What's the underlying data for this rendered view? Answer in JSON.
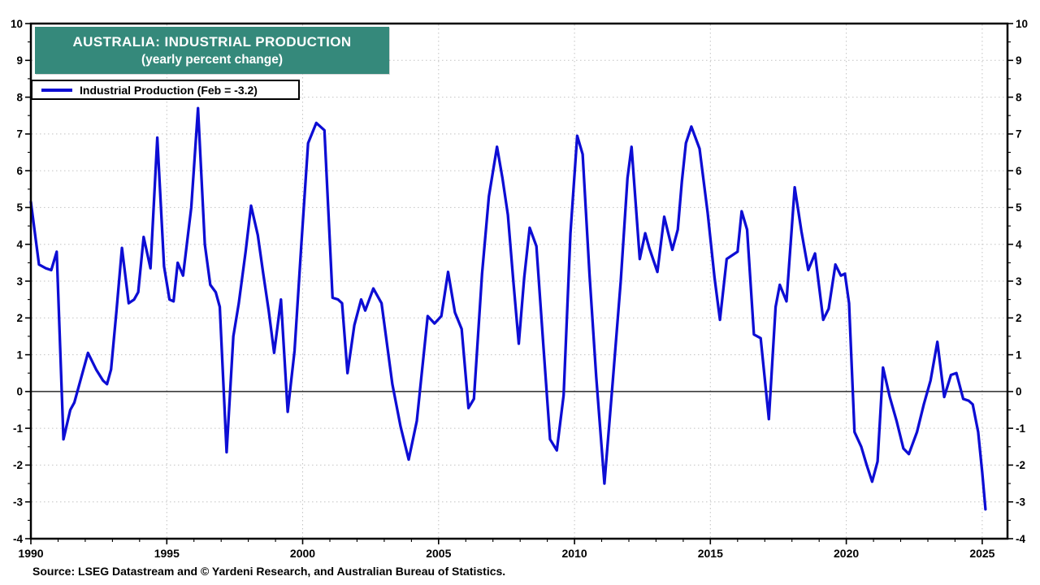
{
  "title": {
    "line1": "AUSTRALIA: INDUSTRIAL PRODUCTION",
    "line2": "(yearly percent change)"
  },
  "legend": {
    "label": "Industrial Production (Feb = -3.2)"
  },
  "source": {
    "text": "Source: LSEG Datastream and © Yardeni Research, and Australian Bureau of Statistics."
  },
  "colors": {
    "line": "#0d0dd4",
    "title_bg": "#35897b",
    "title_text": "#ffffff",
    "grid": "#c2c2c2",
    "axis": "#000000",
    "background": "#ffffff"
  },
  "chart_data": {
    "type": "line",
    "title": "AUSTRALIA: INDUSTRIAL PRODUCTION (yearly percent change)",
    "xlabel": "",
    "ylabel": "",
    "grid": {
      "h_values": [
        -3,
        -2,
        -1,
        1,
        2,
        3,
        4,
        5,
        6,
        7,
        8,
        9
      ],
      "v_values": [
        1995,
        2000,
        2005,
        2010,
        2015,
        2020,
        2025
      ]
    },
    "zero_line": true,
    "legend_position": "top-left",
    "x_axis": {
      "min": 1990.0,
      "max": 2025.93,
      "major_tick_interval": 5,
      "minor_tick_interval": 1,
      "tick_values": [
        1990,
        1995,
        2000,
        2005,
        2010,
        2015,
        2020,
        2025
      ],
      "tick_labels": [
        "1990",
        "1995",
        "2000",
        "2005",
        "2010",
        "2015",
        "2020",
        "2025"
      ]
    },
    "y_axis": {
      "min": -4,
      "max": 10,
      "major_tick_interval": 1,
      "minor_tick_interval": 0.5,
      "tick_values": [
        10,
        9,
        8,
        7,
        6,
        5,
        4,
        3,
        2,
        1,
        0,
        -1,
        -2,
        -3,
        -4
      ],
      "tick_labels": [
        "10",
        "9",
        "8",
        "7",
        "6",
        "5",
        "4",
        "3",
        "2",
        "1",
        "0",
        "-1",
        "-2",
        "-3",
        "-4"
      ],
      "labels_both_sides": true
    },
    "series": [
      {
        "name": "Industrial Production",
        "latest_label": "Feb = -3.2",
        "latest_value": -3.2,
        "color": "#0d0dd4",
        "points": [
          [
            1990.0,
            5.15
          ],
          [
            1990.3,
            3.45
          ],
          [
            1990.55,
            3.35
          ],
          [
            1990.75,
            3.3
          ],
          [
            1990.95,
            3.8
          ],
          [
            1991.2,
            -1.3
          ],
          [
            1991.45,
            -0.5
          ],
          [
            1991.6,
            -0.3
          ],
          [
            1992.1,
            1.05
          ],
          [
            1992.4,
            0.6
          ],
          [
            1992.65,
            0.3
          ],
          [
            1992.8,
            0.2
          ],
          [
            1992.95,
            0.6
          ],
          [
            1993.15,
            2.2
          ],
          [
            1993.35,
            3.9
          ],
          [
            1993.6,
            2.4
          ],
          [
            1993.8,
            2.5
          ],
          [
            1993.95,
            2.7
          ],
          [
            1994.15,
            4.2
          ],
          [
            1994.4,
            3.35
          ],
          [
            1994.65,
            6.9
          ],
          [
            1994.9,
            3.4
          ],
          [
            1995.1,
            2.5
          ],
          [
            1995.25,
            2.45
          ],
          [
            1995.4,
            3.5
          ],
          [
            1995.6,
            3.15
          ],
          [
            1995.9,
            5.0
          ],
          [
            1996.15,
            7.7
          ],
          [
            1996.4,
            4.0
          ],
          [
            1996.6,
            2.9
          ],
          [
            1996.8,
            2.7
          ],
          [
            1996.95,
            2.3
          ],
          [
            1997.2,
            -1.65
          ],
          [
            1997.45,
            1.5
          ],
          [
            1997.65,
            2.4
          ],
          [
            1997.9,
            3.8
          ],
          [
            1998.1,
            5.05
          ],
          [
            1998.35,
            4.25
          ],
          [
            1998.55,
            3.2
          ],
          [
            1998.75,
            2.2
          ],
          [
            1998.95,
            1.05
          ],
          [
            1999.2,
            2.5
          ],
          [
            1999.45,
            -0.55
          ],
          [
            1999.7,
            1.1
          ],
          [
            1999.95,
            4.0
          ],
          [
            2000.2,
            6.75
          ],
          [
            2000.5,
            7.3
          ],
          [
            2000.8,
            7.1
          ],
          [
            2001.1,
            2.55
          ],
          [
            2001.3,
            2.5
          ],
          [
            2001.45,
            2.4
          ],
          [
            2001.65,
            0.5
          ],
          [
            2001.9,
            1.8
          ],
          [
            2002.15,
            2.5
          ],
          [
            2002.3,
            2.2
          ],
          [
            2002.6,
            2.8
          ],
          [
            2002.9,
            2.4
          ],
          [
            2003.3,
            0.2
          ],
          [
            2003.6,
            -0.95
          ],
          [
            2003.9,
            -1.85
          ],
          [
            2004.2,
            -0.8
          ],
          [
            2004.6,
            2.05
          ],
          [
            2004.85,
            1.85
          ],
          [
            2005.1,
            2.05
          ],
          [
            2005.35,
            3.25
          ],
          [
            2005.6,
            2.15
          ],
          [
            2005.85,
            1.7
          ],
          [
            2006.1,
            -0.45
          ],
          [
            2006.3,
            -0.2
          ],
          [
            2006.6,
            3.2
          ],
          [
            2006.85,
            5.3
          ],
          [
            2007.15,
            6.65
          ],
          [
            2007.35,
            5.8
          ],
          [
            2007.55,
            4.8
          ],
          [
            2007.75,
            3.0
          ],
          [
            2007.95,
            1.3
          ],
          [
            2008.15,
            3.1
          ],
          [
            2008.35,
            4.45
          ],
          [
            2008.6,
            3.95
          ],
          [
            2008.85,
            1.3
          ],
          [
            2009.1,
            -1.3
          ],
          [
            2009.35,
            -1.6
          ],
          [
            2009.6,
            -0.1
          ],
          [
            2009.85,
            4.3
          ],
          [
            2010.1,
            6.95
          ],
          [
            2010.3,
            6.45
          ],
          [
            2010.55,
            3.2
          ],
          [
            2010.8,
            0.4
          ],
          [
            2011.1,
            -2.5
          ],
          [
            2011.4,
            0.2
          ],
          [
            2011.7,
            3.0
          ],
          [
            2011.95,
            5.8
          ],
          [
            2012.1,
            6.65
          ],
          [
            2012.4,
            3.6
          ],
          [
            2012.6,
            4.3
          ],
          [
            2012.75,
            3.9
          ],
          [
            2013.05,
            3.25
          ],
          [
            2013.3,
            4.75
          ],
          [
            2013.6,
            3.85
          ],
          [
            2013.8,
            4.4
          ],
          [
            2013.95,
            5.7
          ],
          [
            2014.1,
            6.75
          ],
          [
            2014.3,
            7.2
          ],
          [
            2014.6,
            6.6
          ],
          [
            2014.9,
            4.85
          ],
          [
            2015.15,
            3.1
          ],
          [
            2015.35,
            1.95
          ],
          [
            2015.6,
            3.6
          ],
          [
            2015.8,
            3.7
          ],
          [
            2016.0,
            3.8
          ],
          [
            2016.15,
            4.9
          ],
          [
            2016.35,
            4.4
          ],
          [
            2016.6,
            1.55
          ],
          [
            2016.85,
            1.45
          ],
          [
            2017.15,
            -0.75
          ],
          [
            2017.4,
            2.3
          ],
          [
            2017.55,
            2.9
          ],
          [
            2017.8,
            2.45
          ],
          [
            2018.1,
            5.55
          ],
          [
            2018.35,
            4.35
          ],
          [
            2018.6,
            3.3
          ],
          [
            2018.85,
            3.75
          ],
          [
            2019.15,
            1.95
          ],
          [
            2019.35,
            2.25
          ],
          [
            2019.6,
            3.45
          ],
          [
            2019.8,
            3.15
          ],
          [
            2019.95,
            3.2
          ],
          [
            2020.1,
            2.4
          ],
          [
            2020.3,
            -1.1
          ],
          [
            2020.55,
            -1.5
          ],
          [
            2020.75,
            -2.0
          ],
          [
            2020.95,
            -2.45
          ],
          [
            2021.15,
            -1.9
          ],
          [
            2021.35,
            0.65
          ],
          [
            2021.6,
            -0.15
          ],
          [
            2021.85,
            -0.8
          ],
          [
            2022.1,
            -1.55
          ],
          [
            2022.3,
            -1.7
          ],
          [
            2022.6,
            -1.1
          ],
          [
            2022.85,
            -0.35
          ],
          [
            2023.1,
            0.3
          ],
          [
            2023.35,
            1.35
          ],
          [
            2023.6,
            -0.15
          ],
          [
            2023.85,
            0.45
          ],
          [
            2024.05,
            0.5
          ],
          [
            2024.3,
            -0.2
          ],
          [
            2024.5,
            -0.25
          ],
          [
            2024.65,
            -0.35
          ],
          [
            2024.85,
            -1.1
          ],
          [
            2025.0,
            -2.2
          ],
          [
            2025.12,
            -3.2
          ]
        ]
      }
    ]
  }
}
